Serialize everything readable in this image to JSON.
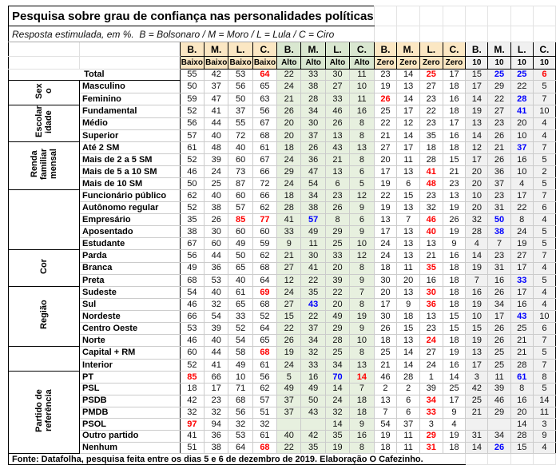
{
  "chart_data": {
    "type": "table",
    "title": "Pesquisa sobre grau de confiança nas personalidades políticas",
    "subtitle": "Resposta estimulada, em %.  B = Bolsonaro / M = Moro / L = Lula / C = Ciro",
    "legend": {
      "B": "Bolsonaro",
      "M": "Moro",
      "L": "Lula",
      "C": "Ciro"
    },
    "unit": "%",
    "highlight_colors": {
      "red": "#ff0000",
      "blue": "#0000ff"
    },
    "column_groups": [
      {
        "measure": "Baixo",
        "columns": [
          "B.",
          "M.",
          "L.",
          "C."
        ],
        "header_bg": "#fbe7c3"
      },
      {
        "measure": "Alto",
        "columns": [
          "B.",
          "M.",
          "L.",
          "C."
        ],
        "header_bg": "#d9e7d0"
      },
      {
        "measure": "Zero",
        "columns": [
          "B.",
          "M.",
          "L.",
          "C."
        ],
        "header_bg": "#fbe7c3"
      },
      {
        "measure": "10",
        "columns": [
          "B.",
          "M.",
          "L.",
          "C."
        ],
        "header_bg": "#f0f0f0"
      }
    ],
    "row_groups": [
      {
        "group": "",
        "rows": [
          {
            "label": "Total",
            "colspan2": true,
            "values": [
              "55",
              "42",
              "53",
              "64",
              "22",
              "33",
              "30",
              "11",
              "23",
              "14",
              "25",
              "17",
              "15",
              "25",
              "25",
              "6"
            ],
            "marks": {
              "3": "red",
              "10": "red",
              "13": "blue",
              "14": "blue",
              "15": "red"
            }
          }
        ]
      },
      {
        "group": "Sexo",
        "rows": [
          {
            "label": "Masculino",
            "values": [
              "50",
              "37",
              "56",
              "65",
              "24",
              "38",
              "27",
              "10",
              "19",
              "13",
              "27",
              "18",
              "17",
              "29",
              "22",
              "5"
            ],
            "marks": {}
          },
          {
            "label": "Feminino",
            "values": [
              "59",
              "47",
              "50",
              "63",
              "21",
              "28",
              "33",
              "11",
              "26",
              "14",
              "23",
              "16",
              "14",
              "22",
              "28",
              "7"
            ],
            "marks": {
              "8": "red",
              "14": "blue"
            }
          }
        ]
      },
      {
        "group": "Escolaridade",
        "rows": [
          {
            "label": "Fundamental",
            "values": [
              "52",
              "41",
              "37",
              "56",
              "26",
              "34",
              "46",
              "16",
              "25",
              "17",
              "22",
              "18",
              "19",
              "27",
              "41",
              "10"
            ],
            "marks": {
              "14": "blue"
            }
          },
          {
            "label": "Médio",
            "values": [
              "56",
              "44",
              "55",
              "67",
              "20",
              "30",
              "26",
              "8",
              "22",
              "12",
              "23",
              "17",
              "13",
              "23",
              "20",
              "4"
            ],
            "marks": {}
          },
          {
            "label": "Superior",
            "values": [
              "57",
              "40",
              "72",
              "68",
              "20",
              "37",
              "13",
              "8",
              "21",
              "14",
              "35",
              "16",
              "14",
              "26",
              "10",
              "4"
            ],
            "marks": {}
          }
        ]
      },
      {
        "group": "Renda familiar mensal",
        "rows": [
          {
            "label": "Até 2 SM",
            "values": [
              "61",
              "48",
              "40",
              "61",
              "18",
              "26",
              "43",
              "13",
              "27",
              "17",
              "18",
              "18",
              "12",
              "21",
              "37",
              "7"
            ],
            "marks": {
              "14": "blue"
            }
          },
          {
            "label": "Mais de 2 a 5 SM",
            "values": [
              "52",
              "39",
              "60",
              "67",
              "24",
              "36",
              "21",
              "8",
              "20",
              "11",
              "28",
              "15",
              "17",
              "26",
              "16",
              "5"
            ],
            "marks": {}
          },
          {
            "label": "Mais de 5 a 10 SM",
            "values": [
              "46",
              "24",
              "73",
              "66",
              "29",
              "47",
              "13",
              "6",
              "17",
              "13",
              "41",
              "21",
              "20",
              "36",
              "10",
              "2"
            ],
            "marks": {
              "10": "red"
            }
          },
          {
            "label": "Mais de 10 SM",
            "values": [
              "50",
              "25",
              "87",
              "72",
              "24",
              "54",
              "6",
              "5",
              "19",
              "6",
              "48",
              "23",
              "20",
              "37",
              "4",
              "5"
            ],
            "marks": {
              "10": "red"
            }
          }
        ]
      },
      {
        "group": "",
        "rows": [
          {
            "label": "Funcionário público",
            "values": [
              "62",
              "40",
              "60",
              "66",
              "18",
              "34",
              "23",
              "12",
              "22",
              "15",
              "23",
              "13",
              "10",
              "23",
              "17",
              "7"
            ],
            "marks": {}
          },
          {
            "label": "Autônomo regular",
            "values": [
              "52",
              "38",
              "57",
              "62",
              "28",
              "38",
              "26",
              "9",
              "19",
              "13",
              "32",
              "19",
              "20",
              "31",
              "22",
              "6"
            ],
            "marks": {}
          },
          {
            "label": "Empresário",
            "values": [
              "35",
              "26",
              "85",
              "77",
              "41",
              "57",
              "8",
              "6",
              "13",
              "7",
              "46",
              "26",
              "32",
              "50",
              "8",
              "4"
            ],
            "marks": {
              "2": "red",
              "3": "red",
              "5": "blue",
              "10": "red",
              "13": "blue"
            }
          },
          {
            "label": "Aposentado",
            "values": [
              "38",
              "30",
              "60",
              "60",
              "33",
              "49",
              "29",
              "9",
              "17",
              "13",
              "40",
              "19",
              "28",
              "38",
              "24",
              "5"
            ],
            "marks": {
              "10": "red",
              "13": "blue"
            }
          },
          {
            "label": "Estudante",
            "values": [
              "67",
              "60",
              "49",
              "59",
              "9",
              "11",
              "25",
              "10",
              "24",
              "13",
              "13",
              "9",
              "4",
              "7",
              "19",
              "5"
            ],
            "marks": {}
          }
        ]
      },
      {
        "group": "Cor",
        "rows": [
          {
            "label": "Parda",
            "values": [
              "56",
              "44",
              "50",
              "62",
              "21",
              "30",
              "33",
              "12",
              "24",
              "13",
              "21",
              "16",
              "14",
              "23",
              "27",
              "7"
            ],
            "marks": {}
          },
          {
            "label": "Branca",
            "values": [
              "49",
              "36",
              "65",
              "68",
              "27",
              "41",
              "20",
              "8",
              "18",
              "11",
              "35",
              "18",
              "19",
              "31",
              "17",
              "4"
            ],
            "marks": {
              "10": "red"
            }
          },
          {
            "label": "Preta",
            "values": [
              "68",
              "53",
              "40",
              "64",
              "12",
              "22",
              "39",
              "9",
              "30",
              "20",
              "16",
              "18",
              "7",
              "16",
              "33",
              "5"
            ],
            "marks": {
              "14": "blue"
            }
          }
        ]
      },
      {
        "group": "Região",
        "rows": [
          {
            "label": "Sudeste",
            "values": [
              "54",
              "40",
              "61",
              "69",
              "24",
              "35",
              "22",
              "7",
              "20",
              "13",
              "30",
              "18",
              "16",
              "26",
              "17",
              "4"
            ],
            "marks": {
              "3": "red",
              "10": "red"
            }
          },
          {
            "label": "Sul",
            "values": [
              "46",
              "32",
              "65",
              "68",
              "27",
              "43",
              "20",
              "8",
              "17",
              "9",
              "36",
              "18",
              "19",
              "34",
              "16",
              "4"
            ],
            "marks": {
              "5": "blue",
              "10": "red"
            }
          },
          {
            "label": "Nordeste",
            "values": [
              "66",
              "54",
              "33",
              "52",
              "15",
              "22",
              "49",
              "19",
              "30",
              "18",
              "13",
              "15",
              "10",
              "17",
              "43",
              "10"
            ],
            "marks": {
              "14": "blue"
            }
          },
          {
            "label": "Centro Oeste",
            "values": [
              "53",
              "39",
              "52",
              "64",
              "22",
              "37",
              "29",
              "9",
              "26",
              "15",
              "23",
              "15",
              "15",
              "26",
              "25",
              "6"
            ],
            "marks": {}
          },
          {
            "label": "Norte",
            "values": [
              "46",
              "40",
              "54",
              "65",
              "26",
              "34",
              "28",
              "10",
              "18",
              "13",
              "24",
              "18",
              "19",
              "26",
              "21",
              "7"
            ],
            "marks": {
              "10": "red"
            }
          }
        ]
      },
      {
        "group": "",
        "rows": [
          {
            "label": "Capital + RM",
            "values": [
              "60",
              "44",
              "58",
              "68",
              "19",
              "32",
              "25",
              "8",
              "25",
              "14",
              "27",
              "19",
              "13",
              "25",
              "21",
              "5"
            ],
            "marks": {
              "3": "red"
            }
          },
          {
            "label": "Interior",
            "values": [
              "52",
              "41",
              "49",
              "61",
              "24",
              "33",
              "34",
              "13",
              "21",
              "14",
              "24",
              "16",
              "17",
              "25",
              "28",
              "7"
            ],
            "marks": {}
          }
        ]
      },
      {
        "group": "Partido de referência",
        "rows": [
          {
            "label": "PT",
            "values": [
              "85",
              "66",
              "10",
              "56",
              "5",
              "16",
              "70",
              "14",
              "46",
              "28",
              "1",
              "14",
              "3",
              "11",
              "61",
              "8"
            ],
            "marks": {
              "0": "red",
              "6": "blue",
              "7": "red",
              "14": "blue"
            }
          },
          {
            "label": "PSL",
            "values": [
              "18",
              "17",
              "71",
              "62",
              "49",
              "49",
              "14",
              "7",
              "2",
              "2",
              "39",
              "25",
              "42",
              "39",
              "8",
              "5"
            ],
            "marks": {}
          },
          {
            "label": "PSDB",
            "values": [
              "42",
              "23",
              "68",
              "57",
              "37",
              "50",
              "24",
              "18",
              "13",
              "6",
              "34",
              "17",
              "25",
              "46",
              "16",
              "14"
            ],
            "marks": {
              "10": "red"
            }
          },
          {
            "label": "PMDB",
            "values": [
              "32",
              "32",
              "56",
              "51",
              "37",
              "43",
              "32",
              "18",
              "7",
              "6",
              "33",
              "9",
              "21",
              "29",
              "20",
              "11"
            ],
            "marks": {
              "10": "red"
            }
          },
          {
            "label": "PSOL",
            "values": [
              "97",
              "94",
              "32",
              "32",
              "",
              "",
              "14",
              "9",
              "54",
              "37",
              "3",
              "4",
              "",
              "",
              "14",
              "3"
            ],
            "marks": {
              "0": "red"
            }
          },
          {
            "label": "Outro partido",
            "values": [
              "41",
              "36",
              "53",
              "61",
              "40",
              "42",
              "35",
              "16",
              "19",
              "11",
              "29",
              "19",
              "31",
              "34",
              "28",
              "9"
            ],
            "marks": {
              "10": "red"
            }
          },
          {
            "label": "Nenhum",
            "values": [
              "51",
              "38",
              "64",
              "68",
              "22",
              "35",
              "19",
              "8",
              "18",
              "11",
              "31",
              "18",
              "14",
              "26",
              "15",
              "4"
            ],
            "marks": {
              "3": "red",
              "10": "red",
              "13": "blue"
            }
          }
        ]
      },
      {
        "group": "",
        "rows": []
      }
    ],
    "footer": "Fonte: Datafolha, pesquisa feita entre os dias 5 e 6 de dezembro de 2019. Elaboração O Cafezinho."
  }
}
